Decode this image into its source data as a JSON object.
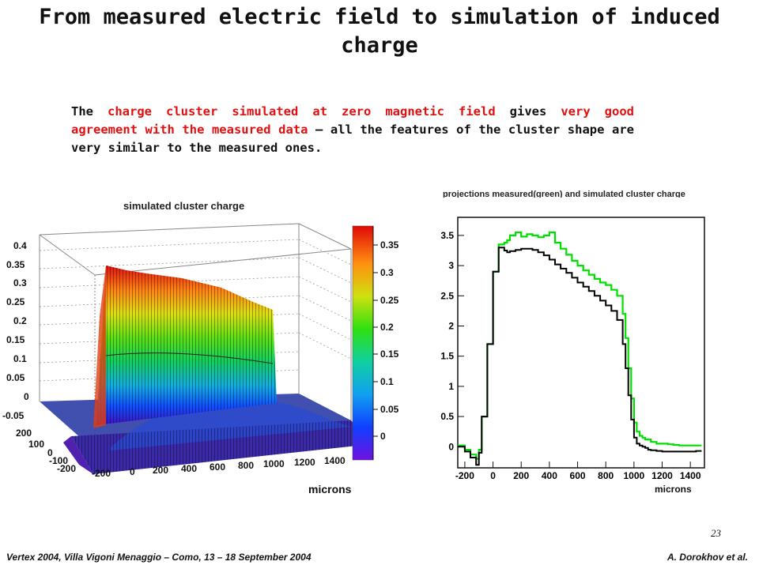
{
  "slide": {
    "title": "From measured electric field to simulation of induced charge",
    "para": {
      "p1": "The ",
      "p2": "charge cluster simulated at zero magnetic field",
      "p3": " gives ",
      "p4": "very good agreement with the measured data",
      "p5": " – all the features of the cluster shape are very similar to the  measured ones."
    },
    "page_number": "23",
    "footer_left": "Vertex 2004, Villa Vigoni  Menaggio – Como, 13 – 18 September 2004",
    "footer_right": "A. Dorokhov et al."
  },
  "colors": {
    "title_text": "#111111",
    "highlight_red": "#e01010",
    "measured": "#00e000",
    "simulated": "#000000"
  },
  "chart_data": [
    {
      "type": "surface",
      "title": "simulated cluster charge",
      "zticks": [
        "0.4",
        "0.35",
        "0.3",
        "0.25",
        "0.2",
        "0.15",
        "0.1",
        "0.05",
        "0",
        "-0.05"
      ],
      "yticks": [
        "200",
        "100",
        "0",
        "-100",
        "-200"
      ],
      "xticks": [
        "-200",
        "0",
        "200",
        "400",
        "600",
        "800",
        "1000",
        "1200",
        "1400"
      ],
      "xlabel": "microns",
      "palette_labels": [
        "0.35",
        "0.3",
        "0.25",
        "0.2",
        "0.15",
        "0.1",
        "0.05",
        "0"
      ],
      "zlim": [
        -0.05,
        0.4
      ]
    },
    {
      "type": "line",
      "title": "projections measured(green) and simulated cluster charge",
      "xlabel": "microns",
      "xticks": [
        "-200",
        "0",
        "200",
        "400",
        "600",
        "800",
        "1000",
        "1200",
        "1400"
      ],
      "yticks": [
        "3.5",
        "3",
        "2.5",
        "2",
        "1.5",
        "1",
        "0.5",
        "0"
      ],
      "xlim": [
        -250,
        1500
      ],
      "ylim": [
        -0.35,
        3.8
      ],
      "series": [
        {
          "name": "measured",
          "color": "#00e000",
          "x": [
            -250,
            -200,
            -160,
            -120,
            -100,
            -80,
            -40,
            0,
            40,
            80,
            100,
            120,
            160,
            200,
            240,
            280,
            320,
            360,
            400,
            440,
            480,
            520,
            560,
            600,
            640,
            680,
            720,
            760,
            800,
            840,
            880,
            920,
            940,
            960,
            980,
            1000,
            1020,
            1040,
            1060,
            1080,
            1100,
            1120,
            1160,
            1200,
            1240,
            1280,
            1320,
            1360,
            1400,
            1440,
            1480
          ],
          "y": [
            0.02,
            -0.05,
            -0.13,
            -0.2,
            -0.05,
            0.5,
            1.7,
            2.9,
            3.35,
            3.38,
            3.42,
            3.5,
            3.55,
            3.48,
            3.52,
            3.5,
            3.47,
            3.5,
            3.55,
            3.38,
            3.28,
            3.18,
            3.08,
            3.0,
            2.92,
            2.85,
            2.78,
            2.72,
            2.68,
            2.6,
            2.5,
            2.2,
            1.8,
            1.3,
            0.8,
            0.4,
            0.25,
            0.18,
            0.15,
            0.12,
            0.12,
            0.08,
            0.05,
            0.05,
            0.04,
            0.03,
            0.02,
            0.02,
            0.02,
            0.02,
            0.02
          ]
        },
        {
          "name": "simulated",
          "color": "#000000",
          "x": [
            -250,
            -200,
            -160,
            -120,
            -100,
            -80,
            -40,
            0,
            40,
            80,
            100,
            120,
            160,
            200,
            240,
            280,
            320,
            360,
            400,
            440,
            480,
            520,
            560,
            600,
            640,
            680,
            720,
            760,
            800,
            840,
            880,
            920,
            940,
            960,
            980,
            1000,
            1020,
            1040,
            1060,
            1080,
            1100,
            1120,
            1160,
            1200,
            1240,
            1280,
            1320,
            1360,
            1400,
            1440,
            1480
          ],
          "y": [
            0.0,
            -0.08,
            -0.18,
            -0.3,
            -0.1,
            0.5,
            1.7,
            2.9,
            3.3,
            3.25,
            3.22,
            3.24,
            3.26,
            3.28,
            3.28,
            3.26,
            3.22,
            3.17,
            3.1,
            3.02,
            2.95,
            2.88,
            2.8,
            2.72,
            2.65,
            2.58,
            2.5,
            2.42,
            2.34,
            2.25,
            2.1,
            1.7,
            1.3,
            0.85,
            0.45,
            0.15,
            0.05,
            0.02,
            0.0,
            -0.02,
            -0.05,
            -0.06,
            -0.07,
            -0.08,
            -0.08,
            -0.08,
            -0.08,
            -0.08,
            -0.08,
            -0.07,
            -0.07
          ]
        }
      ]
    }
  ]
}
